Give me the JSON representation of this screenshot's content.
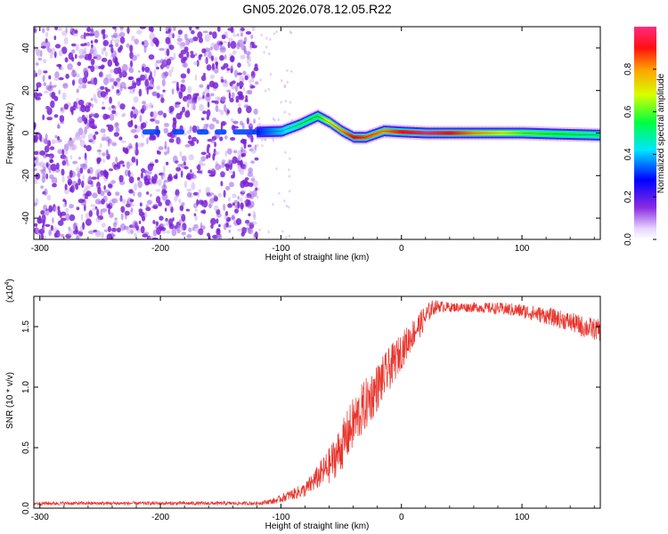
{
  "title": "GN05.2026.078.12.05.R22",
  "chart_data": [
    {
      "type": "heatmap",
      "xlabel": "Height of straight line (km)",
      "ylabel": "Frequency (Hz)",
      "xlim": [
        -305,
        165
      ],
      "ylim": [
        -50,
        50
      ],
      "xticks": [
        -300,
        -200,
        -100,
        0,
        100
      ],
      "xtick_labels": [
        "-300",
        "-200",
        "-100",
        "0",
        "100"
      ],
      "yticks": [
        -40,
        -20,
        0,
        20,
        40
      ],
      "ytick_labels": [
        "-40",
        "-20",
        "0",
        "20",
        "40"
      ],
      "colorbar": {
        "label": "Normalized spectral amplitude",
        "range": [
          0,
          1
        ],
        "ticks": [
          0.0,
          0.2,
          0.4,
          0.6,
          0.8
        ],
        "tick_labels": [
          "0.0",
          "0.2",
          "0.4",
          "0.6",
          "0.8"
        ]
      },
      "noise_region": {
        "x": [
          -305,
          -120
        ],
        "amplitude": 0.15
      },
      "ridge": [
        {
          "x": -120,
          "y": 0.5,
          "amplitude": 0.3
        },
        {
          "x": -100,
          "y": 0.8,
          "amplitude": 0.4
        },
        {
          "x": -85,
          "y": 4,
          "amplitude": 0.5
        },
        {
          "x": -70,
          "y": 8,
          "amplitude": 0.55
        },
        {
          "x": -60,
          "y": 5,
          "amplitude": 0.7
        },
        {
          "x": -50,
          "y": 1,
          "amplitude": 0.8
        },
        {
          "x": -40,
          "y": -2,
          "amplitude": 0.9
        },
        {
          "x": -30,
          "y": -2,
          "amplitude": 0.85
        },
        {
          "x": -15,
          "y": 1,
          "amplitude": 0.8
        },
        {
          "x": 0,
          "y": 0.5,
          "amplitude": 0.9
        },
        {
          "x": 20,
          "y": 0,
          "amplitude": 1.0
        },
        {
          "x": 60,
          "y": 0,
          "amplitude": 0.8
        },
        {
          "x": 100,
          "y": 0,
          "amplitude": 0.6
        },
        {
          "x": 130,
          "y": -0.5,
          "amplitude": 0.55
        },
        {
          "x": 165,
          "y": -1,
          "amplitude": 0.5
        }
      ]
    },
    {
      "type": "line",
      "xlabel": "Height of straight line (km)",
      "ylabel": "SNR (10 * v/v)",
      "y_multiplier_label": "(x10",
      "y_multiplier_exponent": "4",
      "y_multiplier_close": ")",
      "xlim": [
        -305,
        165
      ],
      "ylim": [
        0,
        17500
      ],
      "xticks": [
        -300,
        -200,
        -100,
        0,
        100
      ],
      "xtick_labels": [
        "-300",
        "-200",
        "-100",
        "0",
        "100"
      ],
      "yticks": [
        0,
        5000,
        10000,
        15000
      ],
      "ytick_labels": [
        "0.0",
        "0.5",
        "1.0",
        "1.5"
      ],
      "series": [
        {
          "color": "#e8342c",
          "x": [
            -305,
            -250,
            -200,
            -150,
            -120,
            -105,
            -95,
            -80,
            -70,
            -60,
            -50,
            -40,
            -30,
            -20,
            -10,
            0,
            10,
            20,
            25,
            30,
            40,
            60,
            80,
            100,
            120,
            140,
            150,
            165
          ],
          "y": [
            400,
            400,
            400,
            400,
            400,
            600,
            1000,
            1500,
            2500,
            3500,
            5000,
            7000,
            8500,
            10000,
            11500,
            13000,
            14500,
            15800,
            16500,
            16700,
            16600,
            16600,
            16500,
            16300,
            15900,
            15400,
            15000,
            14700
          ],
          "noise": [
            150,
            150,
            150,
            150,
            150,
            250,
            400,
            600,
            1000,
            1500,
            2000,
            2200,
            2200,
            2000,
            1800,
            1500,
            1200,
            1000,
            700,
            500,
            400,
            400,
            500,
            600,
            700,
            800,
            900,
            900
          ]
        }
      ]
    }
  ]
}
